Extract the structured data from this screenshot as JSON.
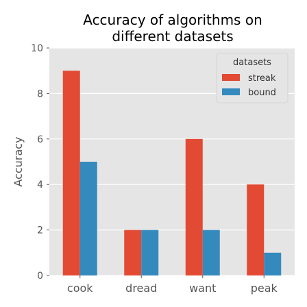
{
  "chart_data": {
    "type": "bar",
    "title_lines": [
      "Accuracy of algorithms on",
      "different datasets"
    ],
    "xlabel": "",
    "ylabel": "Accuracy",
    "categories": [
      "cook",
      "dread",
      "want",
      "peak"
    ],
    "series": [
      {
        "name": "streak",
        "values": [
          9,
          2,
          6,
          4
        ],
        "color": "#e24a33"
      },
      {
        "name": "bound",
        "values": [
          5,
          2,
          2,
          1
        ],
        "color": "#348abd"
      }
    ],
    "ylim": [
      0,
      10
    ],
    "yticks": [
      "0",
      "2",
      "4",
      "6",
      "8",
      "10"
    ],
    "grid": true,
    "legend": {
      "title": "datasets",
      "placement": "top-right"
    },
    "background_color": "#e5e5e5",
    "grid_color": "#ffffff"
  }
}
